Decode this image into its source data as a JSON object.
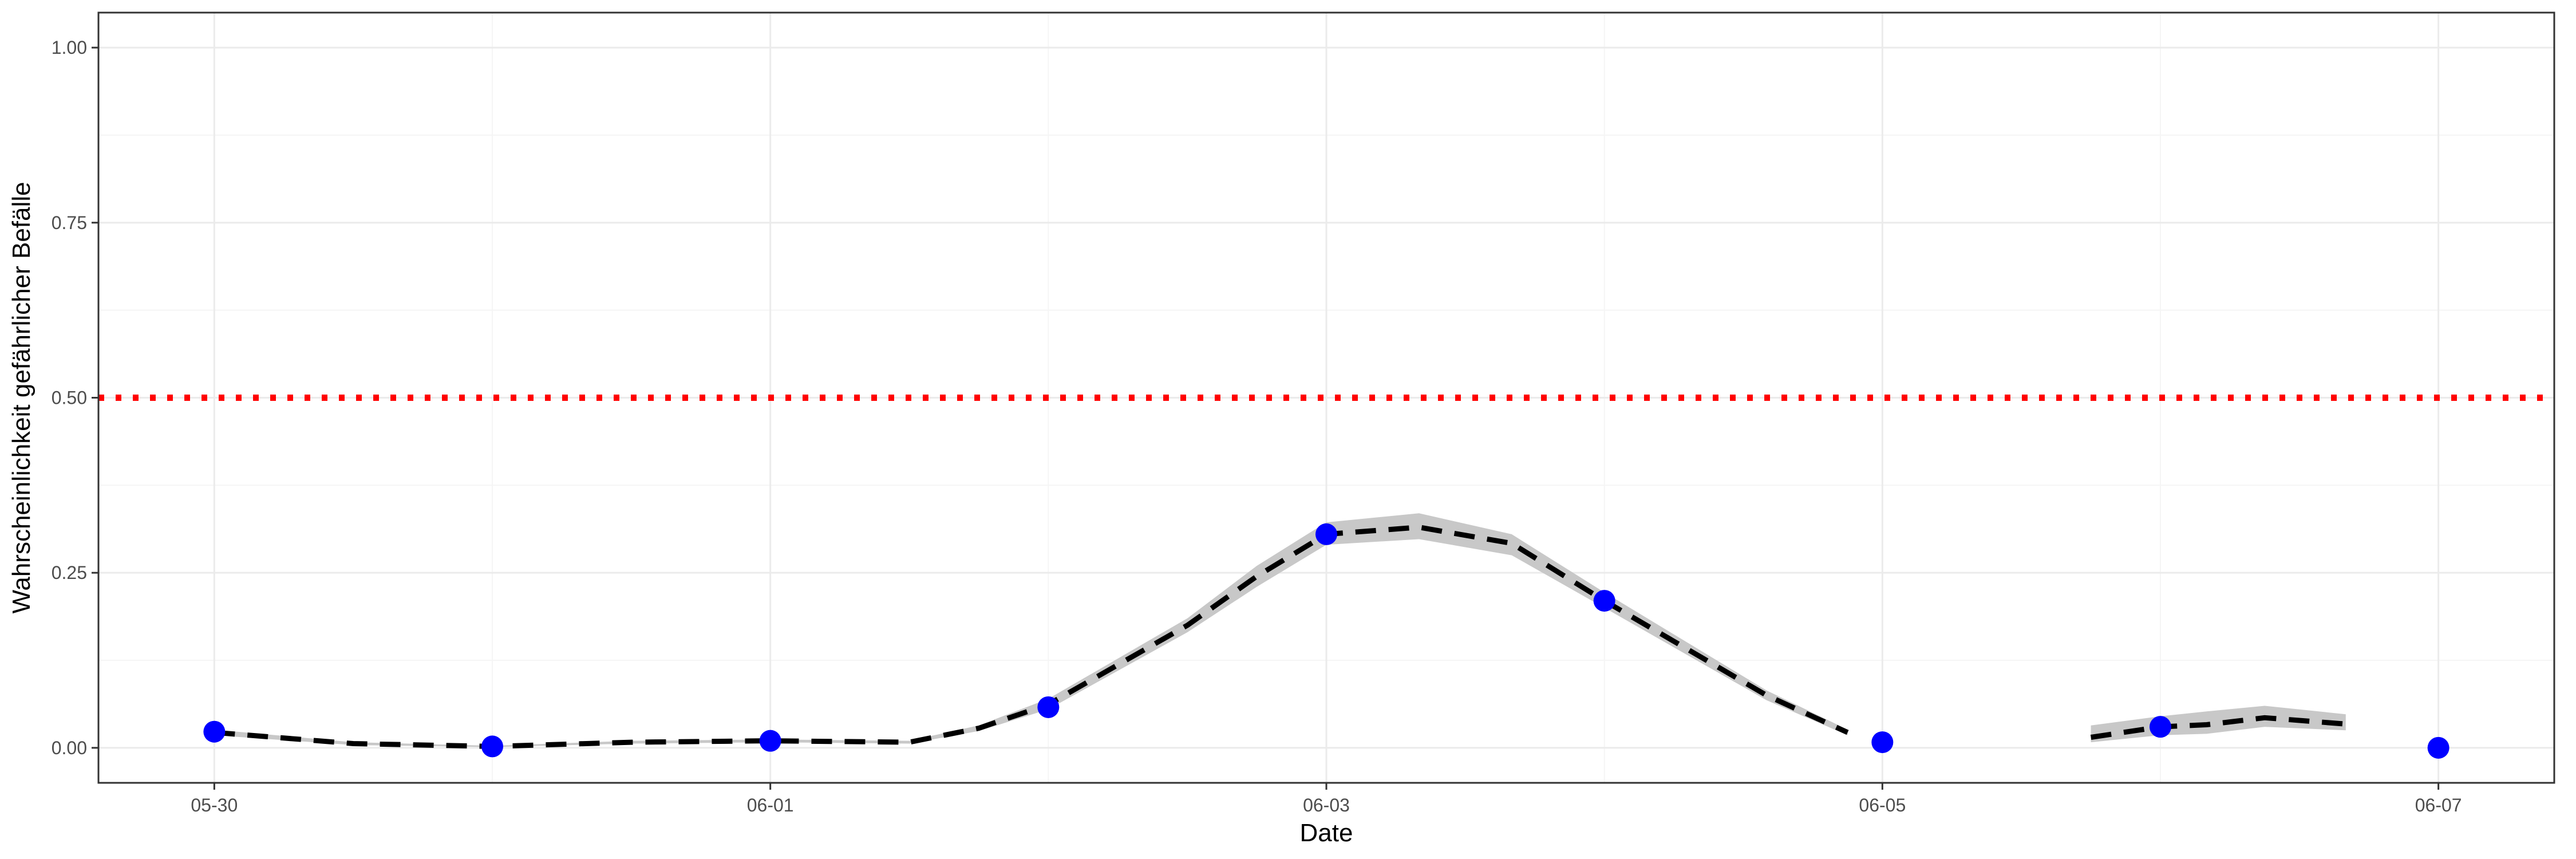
{
  "chart_data": {
    "type": "line",
    "xlabel": "Date",
    "ylabel": "Wahrscheinlichkeit gefährlicher Befälle",
    "xlim": [
      "2023-05-29T14:00",
      "2023-06-07T10:00"
    ],
    "ylim": [
      -0.05,
      1.05
    ],
    "x_ticks": [
      {
        "value": "2023-05-30",
        "label": "05-30"
      },
      {
        "value": "2023-06-01",
        "label": "06-01"
      },
      {
        "value": "2023-06-03",
        "label": "06-03"
      },
      {
        "value": "2023-06-05",
        "label": "06-05"
      },
      {
        "value": "2023-06-07",
        "label": "06-07"
      }
    ],
    "y_ticks": [
      {
        "value": 0.0,
        "label": "0.00"
      },
      {
        "value": 0.25,
        "label": "0.25"
      },
      {
        "value": 0.5,
        "label": "0.50"
      },
      {
        "value": 0.75,
        "label": "0.75"
      },
      {
        "value": 1.0,
        "label": "1.00"
      }
    ],
    "threshold": {
      "value": 0.5,
      "style": "dotted",
      "color": "#ff0000"
    },
    "fitted_segments": [
      [
        {
          "x": "2023-05-30T00:00",
          "y": 0.022,
          "lo": 0.018,
          "hi": 0.026
        },
        {
          "x": "2023-05-30T12:00",
          "y": 0.006,
          "lo": 0.004,
          "hi": 0.008
        },
        {
          "x": "2023-05-31T00:00",
          "y": 0.002,
          "lo": 0.001,
          "hi": 0.003
        },
        {
          "x": "2023-05-31T12:00",
          "y": 0.008,
          "lo": 0.006,
          "hi": 0.01
        },
        {
          "x": "2023-06-01T00:00",
          "y": 0.01,
          "lo": 0.008,
          "hi": 0.012
        },
        {
          "x": "2023-06-01T12:00",
          "y": 0.008,
          "lo": 0.006,
          "hi": 0.01
        },
        {
          "x": "2023-06-01T18:00",
          "y": 0.028,
          "lo": 0.024,
          "hi": 0.032
        },
        {
          "x": "2023-06-02T00:00",
          "y": 0.062,
          "lo": 0.055,
          "hi": 0.07
        },
        {
          "x": "2023-06-02T12:00",
          "y": 0.175,
          "lo": 0.165,
          "hi": 0.185
        },
        {
          "x": "2023-06-02T18:00",
          "y": 0.245,
          "lo": 0.23,
          "hi": 0.26
        },
        {
          "x": "2023-06-03T00:00",
          "y": 0.305,
          "lo": 0.29,
          "hi": 0.322
        },
        {
          "x": "2023-06-03T08:00",
          "y": 0.315,
          "lo": 0.298,
          "hi": 0.335
        },
        {
          "x": "2023-06-03T16:00",
          "y": 0.292,
          "lo": 0.275,
          "hi": 0.305
        },
        {
          "x": "2023-06-04T00:00",
          "y": 0.21,
          "lo": 0.2,
          "hi": 0.222
        },
        {
          "x": "2023-06-04T14:00",
          "y": 0.075,
          "lo": 0.068,
          "hi": 0.082
        },
        {
          "x": "2023-06-04T21:00",
          "y": 0.022,
          "lo": 0.018,
          "hi": 0.026
        }
      ],
      [
        {
          "x": "2023-06-05T18:00",
          "y": 0.015,
          "lo": 0.008,
          "hi": 0.032
        },
        {
          "x": "2023-06-06T00:00",
          "y": 0.03,
          "lo": 0.018,
          "hi": 0.045
        },
        {
          "x": "2023-06-06T04:00",
          "y": 0.033,
          "lo": 0.02,
          "hi": 0.052
        },
        {
          "x": "2023-06-06T09:00",
          "y": 0.043,
          "lo": 0.03,
          "hi": 0.06
        },
        {
          "x": "2023-06-06T16:00",
          "y": 0.034,
          "lo": 0.025,
          "hi": 0.048
        }
      ]
    ],
    "observed_points": [
      {
        "x": "2023-05-30T00:00",
        "y": 0.023
      },
      {
        "x": "2023-05-31T00:00",
        "y": 0.002
      },
      {
        "x": "2023-06-01T00:00",
        "y": 0.01
      },
      {
        "x": "2023-06-02T00:00",
        "y": 0.058
      },
      {
        "x": "2023-06-03T00:00",
        "y": 0.305
      },
      {
        "x": "2023-06-04T00:00",
        "y": 0.21
      },
      {
        "x": "2023-06-05T00:00",
        "y": 0.008
      },
      {
        "x": "2023-06-06T00:00",
        "y": 0.03
      },
      {
        "x": "2023-06-07T00:00",
        "y": 0.0
      }
    ],
    "colors": {
      "points": "#0000ff",
      "fit_line": "#000000",
      "ribbon": "#c8c8c8",
      "threshold": "#ff0000",
      "grid_major": "#ebebeb",
      "grid_minor": "#f5f5f5",
      "panel_border": "#333333"
    },
    "grid": true,
    "legend": "none"
  }
}
